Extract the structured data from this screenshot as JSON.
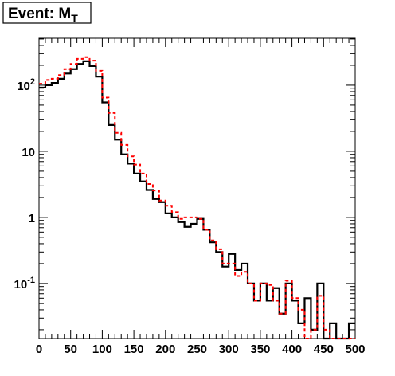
{
  "chart_data": {
    "type": "histogram",
    "title": "Event: M",
    "title_subscript": "T",
    "xlabel": "",
    "ylabel": "",
    "xlim": [
      0,
      500
    ],
    "ylim": [
      0.0147,
      513
    ],
    "y_scale": "log",
    "grid": false,
    "legend": "none",
    "bin_width": 10,
    "x_ticks": [
      "0",
      "50",
      "100",
      "150",
      "200",
      "250",
      "300",
      "350",
      "400",
      "450",
      "500"
    ],
    "y_ticks": [
      {
        "value": 100,
        "base": "10",
        "exp": "2"
      },
      {
        "value": 10,
        "text": "10"
      },
      {
        "value": 1,
        "text": "1"
      },
      {
        "value": 0.1,
        "base": "10",
        "exp": "-1"
      }
    ],
    "series": [
      {
        "color": "#000000",
        "style": "solid",
        "values": [
          92,
          100,
          108,
          125,
          150,
          175,
          210,
          230,
          195,
          135,
          55,
          25,
          15,
          9,
          6.5,
          4.6,
          3.5,
          2.6,
          1.9,
          1.7,
          1.15,
          1.0,
          0.85,
          0.72,
          0.8,
          0.95,
          0.65,
          0.42,
          0.3,
          0.18,
          0.28,
          0.16,
          0.2,
          0.1,
          0.055,
          0.1,
          0.055,
          0.085,
          0.035,
          0.1,
          0.055,
          0.025,
          0.06,
          0.02,
          0.1,
          0,
          0.025,
          0,
          0,
          0.025
        ]
      },
      {
        "color": "#ff0000",
        "style": "dashed",
        "values": [
          105,
          120,
          125,
          142,
          175,
          210,
          250,
          265,
          235,
          165,
          65,
          38,
          19,
          12.5,
          8.4,
          6.3,
          4.6,
          3.2,
          2.55,
          1.8,
          1.5,
          1.2,
          0.95,
          1.0,
          1.0,
          0.95,
          0.65,
          0.45,
          0.33,
          0.2,
          0.2,
          0.13,
          0.15,
          0.1,
          0.055,
          0.1,
          0.095,
          0.055,
          0.035,
          0.11,
          0.06,
          0.04,
          0,
          0.02,
          0.065,
          0.02,
          0,
          0,
          0,
          0
        ]
      }
    ]
  }
}
